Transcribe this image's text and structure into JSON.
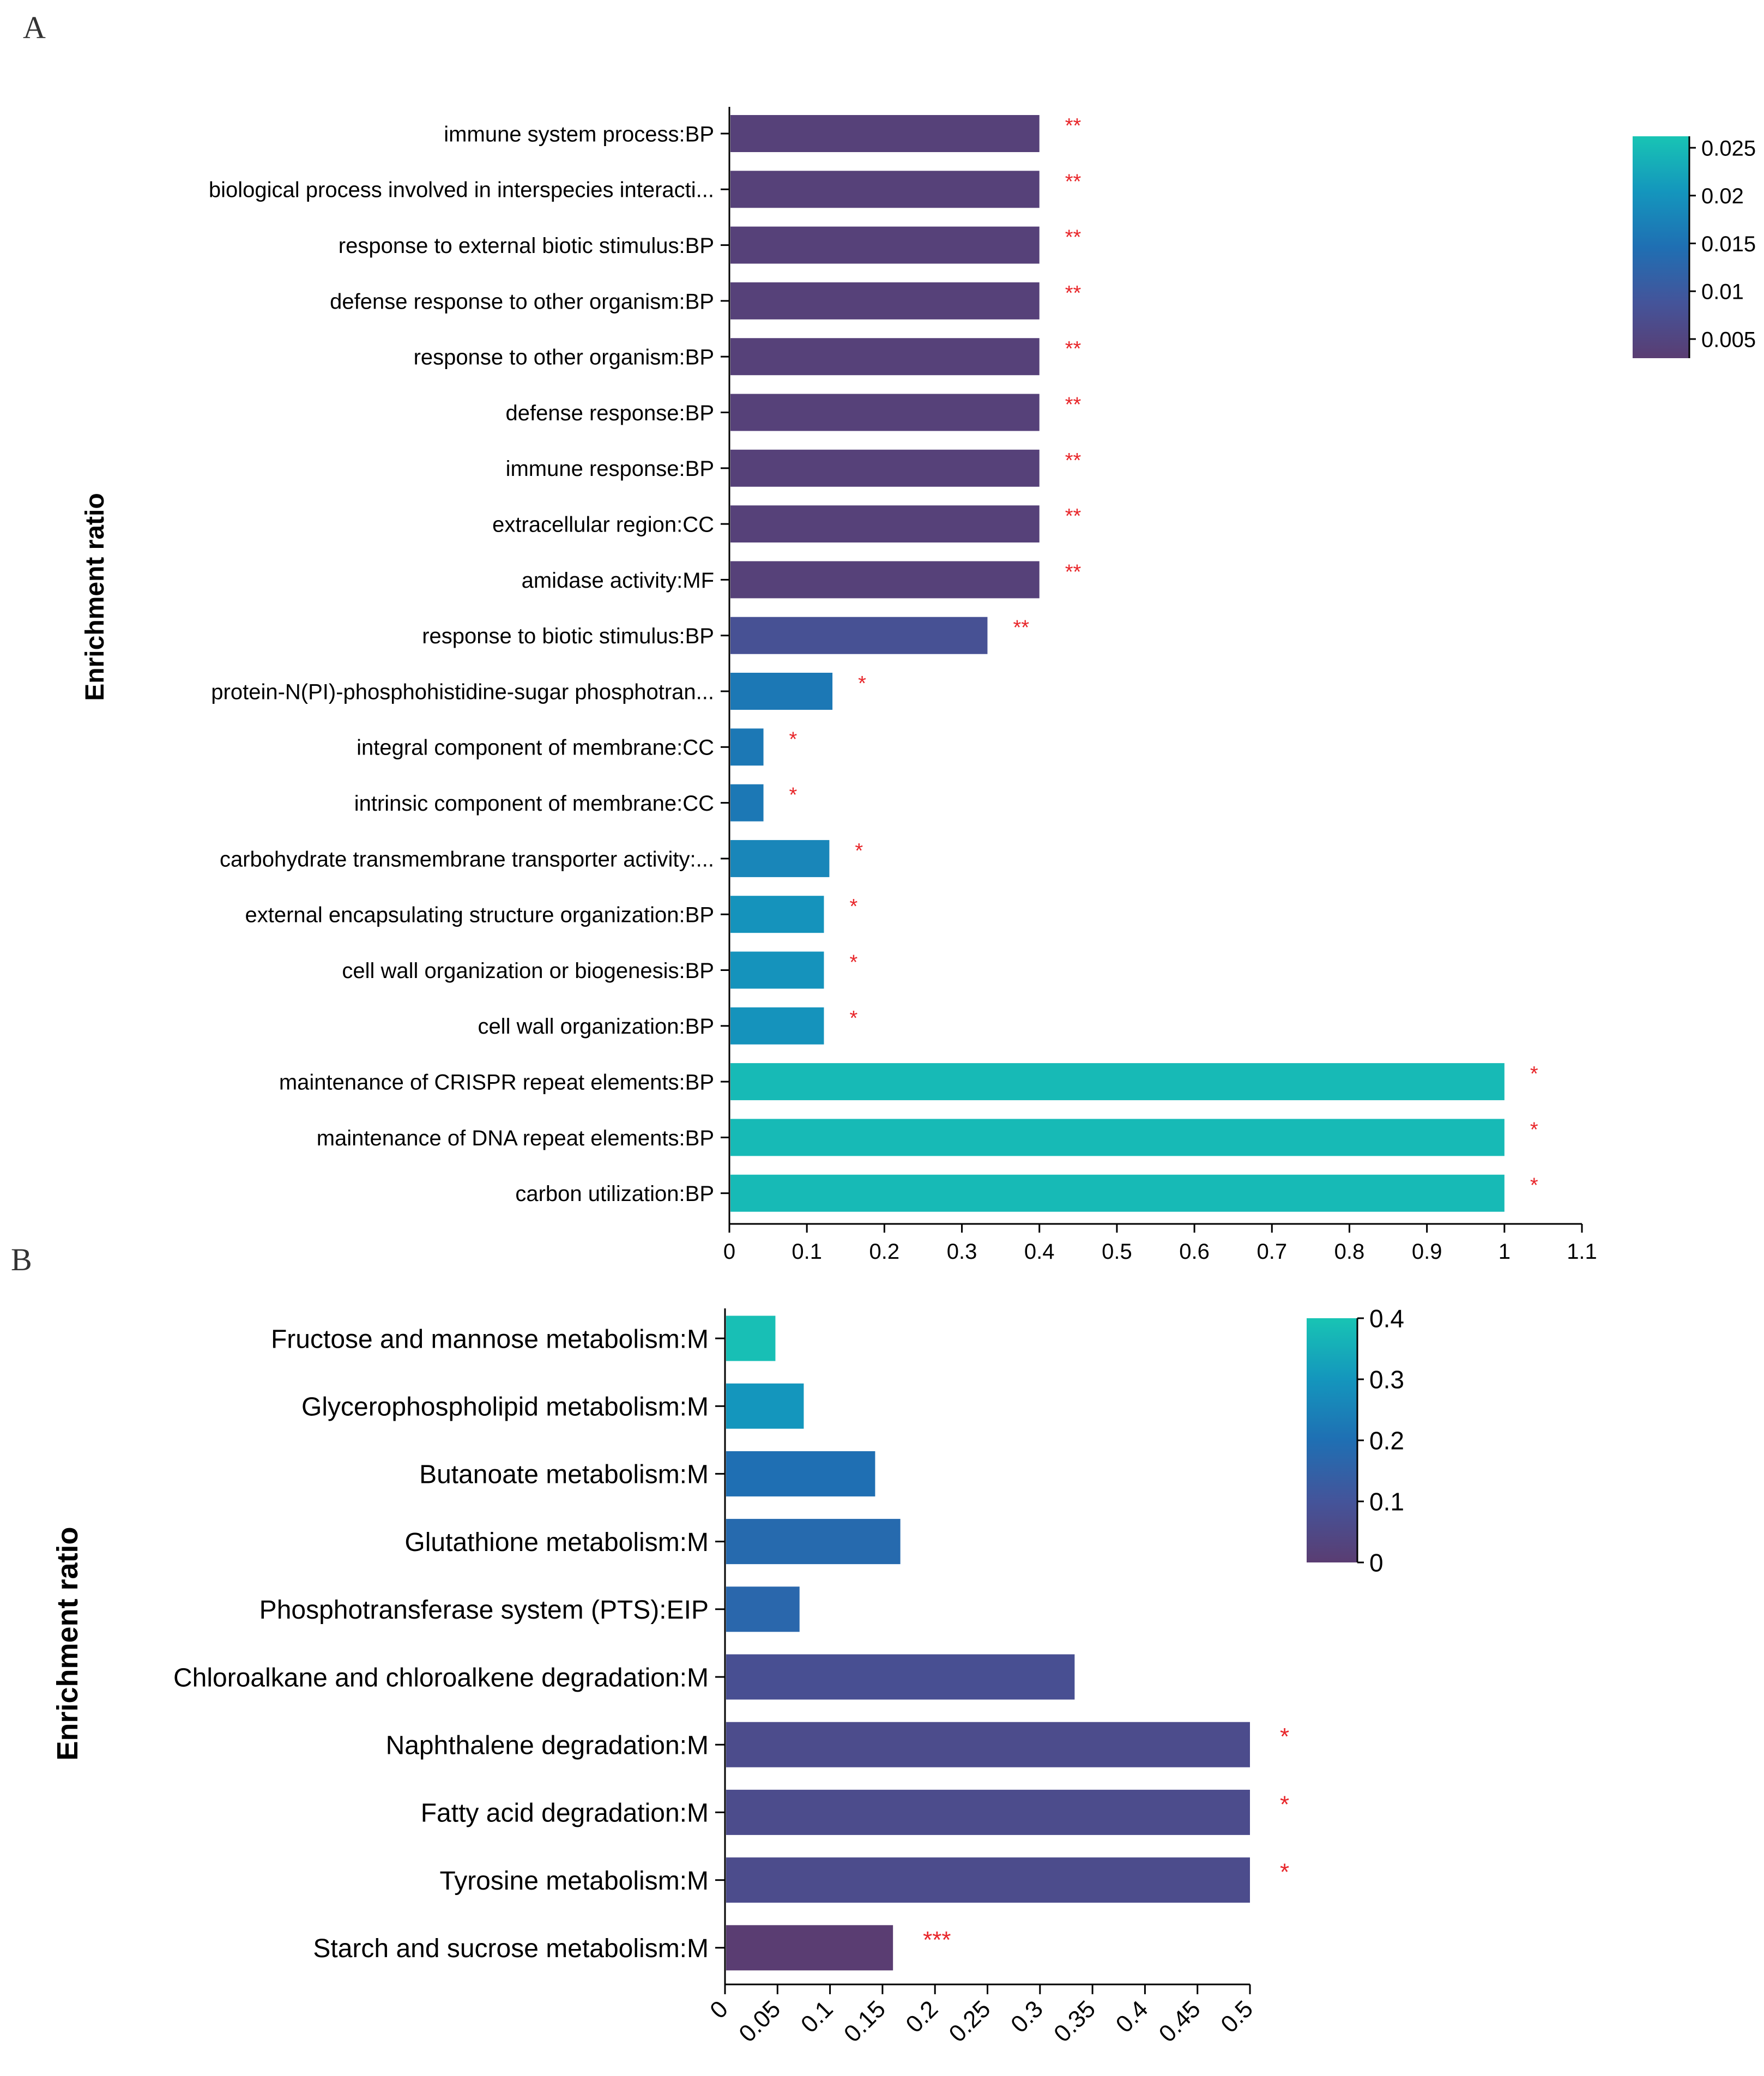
{
  "figure": {
    "panel_a_letter": "A",
    "panel_b_letter": "B"
  },
  "chart_data": [
    {
      "type": "bar",
      "orientation": "horizontal",
      "panel": "A",
      "ylabel": "Enrichment ratio",
      "xlabel": "",
      "xlim": [
        0,
        1.1
      ],
      "x_ticks": [
        0,
        0.1,
        0.2,
        0.3,
        0.4,
        0.5,
        0.6,
        0.7,
        0.8,
        0.9,
        1,
        1.1
      ],
      "x_tick_labels": [
        "0",
        "0.1",
        "0.2",
        "0.3",
        "0.4",
        "0.5",
        "0.6",
        "0.7",
        "0.8",
        "0.9",
        "1",
        "1.1"
      ],
      "categories": [
        "immune system process:BP",
        "biological process involved in interspecies interacti...",
        "response to external biotic stimulus:BP",
        "defense response to other organism:BP",
        "response to other organism:BP",
        "defense response:BP",
        "immune response:BP",
        "extracellular region:CC",
        "amidase activity:MF",
        "response to biotic stimulus:BP",
        "protein-N(PI)-phosphohistidine-sugar phosphotran...",
        "integral component of membrane:CC",
        "intrinsic component of membrane:CC",
        "carbohydrate transmembrane transporter activity:...",
        "external encapsulating structure organization:BP",
        "cell wall organization or biogenesis:BP",
        "cell wall organization:BP",
        "maintenance of CRISPR repeat elements:BP",
        "maintenance of DNA repeat elements:BP",
        "carbon utilization:BP"
      ],
      "values": [
        0.4,
        0.4,
        0.4,
        0.4,
        0.4,
        0.4,
        0.4,
        0.4,
        0.4,
        0.333,
        0.133,
        0.044,
        0.044,
        0.129,
        0.122,
        0.122,
        0.122,
        1,
        1,
        1
      ],
      "color_values": [
        0.004,
        0.004,
        0.004,
        0.004,
        0.004,
        0.004,
        0.004,
        0.004,
        0.004,
        0.008,
        0.016,
        0.016,
        0.016,
        0.018,
        0.02,
        0.02,
        0.02,
        0.025,
        0.025,
        0.025
      ],
      "significance": [
        "**",
        "**",
        "**",
        "**",
        "**",
        "**",
        "**",
        "**",
        "**",
        "**",
        "*",
        "*",
        "*",
        "*",
        "*",
        "*",
        "*",
        "*",
        "*",
        "*"
      ],
      "colorbar": {
        "min": 0.003,
        "max": 0.0262,
        "ticks": [
          0.005,
          0.01,
          0.015,
          0.02,
          0.025
        ],
        "tick_labels": [
          "0.005",
          "0.01",
          "0.015",
          "0.02",
          "0.025"
        ],
        "colors": [
          "#5a3d72",
          "#44549a",
          "#1f6fb3",
          "#1496bd",
          "#18c4b4"
        ]
      },
      "significance_color": "#e8262a"
    },
    {
      "type": "bar",
      "orientation": "horizontal",
      "panel": "B",
      "ylabel": "Enrichment ratio",
      "xlabel": "",
      "xlim": [
        0,
        0.5
      ],
      "x_ticks": [
        0,
        0.05,
        0.1,
        0.15,
        0.2,
        0.25,
        0.3,
        0.35,
        0.4,
        0.45,
        0.5
      ],
      "x_tick_labels": [
        "0",
        "0.05",
        "0.1",
        "0.15",
        "0.2",
        "0.25",
        "0.3",
        "0.35",
        "0.4",
        "0.45",
        "0.5"
      ],
      "categories": [
        "Fructose and mannose metabolism:M",
        "Glycerophospholipid metabolism:M",
        "Butanoate metabolism:M",
        "Glutathione metabolism:M",
        "Phosphotransferase system (PTS):EIP",
        "Chloroalkane and chloroalkene degradation:M",
        "Naphthalene degradation:M",
        "Fatty acid degradation:M",
        "Tyrosine metabolism:M",
        "Starch and sucrose metabolism:M"
      ],
      "values": [
        0.048,
        0.075,
        0.143,
        0.167,
        0.071,
        0.333,
        0.5,
        0.5,
        0.5,
        0.16
      ],
      "color_values": [
        0.39,
        0.3,
        0.2,
        0.18,
        0.17,
        0.08,
        0.065,
        0.065,
        0.065,
        0.0
      ],
      "significance": [
        "",
        "",
        "",
        "",
        "",
        "",
        "*",
        "*",
        "*",
        "***"
      ],
      "colorbar": {
        "min": 0,
        "max": 0.4,
        "ticks": [
          0,
          0.1,
          0.2,
          0.3,
          0.4
        ],
        "tick_labels": [
          "0",
          "0.1",
          "0.2",
          "0.3",
          "0.4"
        ],
        "colors": [
          "#5a3d72",
          "#44549a",
          "#1f6fb3",
          "#1496bd",
          "#18c4b4"
        ]
      },
      "significance_color": "#e8262a"
    }
  ]
}
